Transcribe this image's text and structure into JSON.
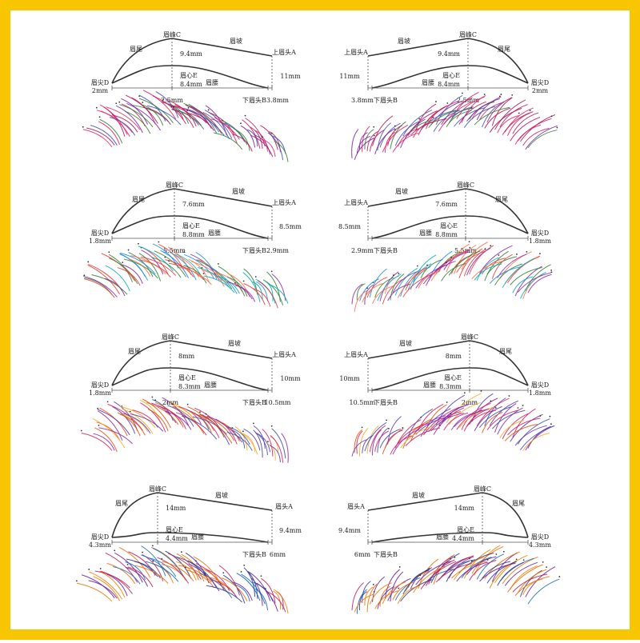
{
  "panels": [
    {
      "peak": "眉峰C",
      "tail": "眉尾",
      "slope": "眉坡",
      "head_top": "上眉头A",
      "upper_mm": "9.4mm",
      "center": "眉心E",
      "lower_mm": "8.4mm",
      "waist": "眉腰",
      "height_mm": "11mm",
      "tip": "眉尖D",
      "tip_mm": "2mm",
      "bottom_mm": "2.5mm",
      "head_bottom": "下眉头B",
      "head_mm": "3.8mm"
    },
    {
      "peak": "眉峰C",
      "tail": "眉尾",
      "slope": "眉坡",
      "head_top": "上眉头A",
      "upper_mm": "9.4mm",
      "center": "眉心E",
      "lower_mm": "8.4mm",
      "waist": "眉腰",
      "height_mm": "11mm",
      "tip": "眉尖D",
      "tip_mm": "2mm",
      "bottom_mm": "2.5mm",
      "head_bottom": "下眉头B",
      "head_mm": "3.8mm"
    },
    {
      "peak": "眉峰C",
      "tail": "眉尾",
      "slope": "眉坡",
      "head_top": "上眉头A",
      "upper_mm": "7.6mm",
      "center": "眉心E",
      "lower_mm": "8.8mm",
      "waist": "眉腰",
      "height_mm": "8.5mm",
      "tip": "眉尖D",
      "tip_mm": "1.8mm",
      "bottom_mm": "5.5mm",
      "head_bottom": "下眉头B",
      "head_mm": "2.9mm"
    },
    {
      "peak": "眉峰C",
      "tail": "眉尾",
      "slope": "眉坡",
      "head_top": "上眉头A",
      "upper_mm": "7.6mm",
      "center": "眉心E",
      "lower_mm": "8.8mm",
      "waist": "眉腰",
      "height_mm": "8.5mm",
      "tip": "眉尖D",
      "tip_mm": "1.8mm",
      "bottom_mm": "5.5mm",
      "head_bottom": "下眉头B",
      "head_mm": "2.9mm"
    },
    {
      "peak": "眉峰C",
      "tail": "眉尾",
      "slope": "眉坡",
      "head_top": "上眉头A",
      "upper_mm": "8mm",
      "center": "眉心E",
      "lower_mm": "8.3mm",
      "waist": "眉腰",
      "height_mm": "10mm",
      "tip": "眉尖D",
      "tip_mm": "1.8mm",
      "bottom_mm": "2mm",
      "head_bottom": "下眉头B",
      "head_mm": "10.5mm"
    },
    {
      "peak": "眉峰C",
      "tail": "眉尾",
      "slope": "眉坡",
      "head_top": "上眉头A",
      "upper_mm": "8mm",
      "center": "眉心E",
      "lower_mm": "8.3mm",
      "waist": "眉腰",
      "height_mm": "10mm",
      "tip": "眉尖D",
      "tip_mm": "1.8mm",
      "bottom_mm": "2mm",
      "head_bottom": "下眉头B",
      "head_mm": "10.5mm"
    },
    {
      "peak": "眉峰C",
      "tail": "眉尾",
      "slope": "眉坡",
      "head_top": "眉头A",
      "upper_mm": "14mm",
      "center": "眉心E",
      "lower_mm": "4.4mm",
      "waist": "眉腰",
      "height_mm": "9.4mm",
      "tip": "眉尖D",
      "tip_mm": "4.3mm",
      "head_bottom": "下眉头B",
      "head_mm": "6mm"
    },
    {
      "peak": "眉峰C",
      "tail": "眉尾",
      "slope": "眉坡",
      "head_top": "眉头A",
      "upper_mm": "14mm",
      "center": "眉心E",
      "lower_mm": "4.4mm",
      "waist": "眉腰",
      "height_mm": "9.4mm",
      "tip": "眉尖D",
      "tip_mm": "4.3mm",
      "head_bottom": "下眉头B",
      "head_mm": "6mm"
    }
  ]
}
